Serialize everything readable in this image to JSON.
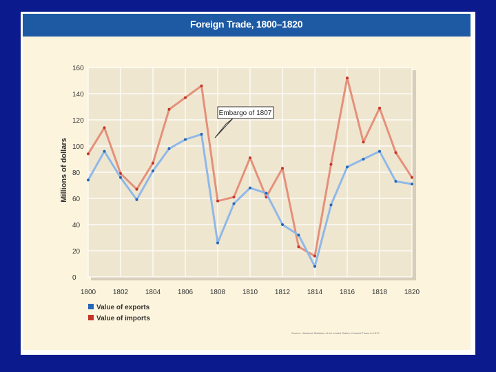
{
  "slide": {
    "title": "Foreign Trade, 1800–1820",
    "source": "Source: Historical Statistics of the United States: Colonial Times to 1970."
  },
  "colors": {
    "background": "#0b1a8c",
    "header": "#1d5aa3",
    "panel": "#fdf4dd",
    "plot": "#efe6d0",
    "exports": "#8fb8e8",
    "imports": "#e4907a",
    "exports_marker": "#2466b8",
    "imports_marker": "#c4352a"
  },
  "chart_data": {
    "type": "line",
    "title": "Foreign Trade, 1800–1820",
    "xlabel": "",
    "ylabel": "Millions of dollars",
    "ylim": [
      0,
      160
    ],
    "yticks": [
      0,
      20,
      40,
      60,
      80,
      100,
      120,
      140,
      160
    ],
    "xlim": [
      1800,
      1820
    ],
    "xticks": [
      1800,
      1802,
      1804,
      1806,
      1808,
      1810,
      1812,
      1814,
      1816,
      1818,
      1820
    ],
    "xtick_labels": [
      "1800",
      "1802",
      "1804",
      "1806",
      "1808",
      "1810",
      "1812",
      "1814",
      "1816",
      "1818",
      "1820"
    ],
    "grid": true,
    "legend_position": "bottom-left",
    "x": [
      1800,
      1801,
      1802,
      1803,
      1804,
      1805,
      1806,
      1807,
      1808,
      1809,
      1810,
      1811,
      1812,
      1813,
      1814,
      1815,
      1816,
      1817,
      1818,
      1819,
      1820
    ],
    "series": [
      {
        "name": "Value of exports",
        "color": "#8fb8e8",
        "values": [
          74,
          96,
          76,
          59,
          81,
          98,
          105,
          109,
          26,
          56,
          68,
          64,
          40,
          32,
          8,
          55,
          84,
          90,
          96,
          73,
          71
        ]
      },
      {
        "name": "Value of imports",
        "color": "#e4907a",
        "values": [
          94,
          114,
          79,
          67,
          87,
          128,
          137,
          146,
          58,
          61,
          91,
          61,
          83,
          23,
          16,
          86,
          152,
          103,
          129,
          95,
          76
        ]
      }
    ],
    "annotations": [
      {
        "text": "Embargo of 1807",
        "x": 1808
      }
    ]
  }
}
